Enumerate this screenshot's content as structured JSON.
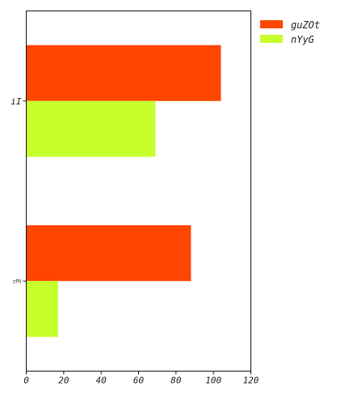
{
  "chart_data": {
    "type": "bar",
    "orientation": "horizontal",
    "categories": [
      "iI",
      "zPU"
    ],
    "series": [
      {
        "name": "guZOt",
        "color": "#ff4500",
        "values": [
          104,
          88
        ]
      },
      {
        "name": "nYyG",
        "color": "#c6ff2b",
        "values": [
          69,
          17
        ]
      }
    ],
    "xlim": [
      0,
      120
    ],
    "xticks": [
      0,
      20,
      40,
      60,
      80,
      100,
      120
    ],
    "title": "",
    "xlabel": "",
    "ylabel": "",
    "grid": false,
    "legend_position": "outside-top-right"
  }
}
